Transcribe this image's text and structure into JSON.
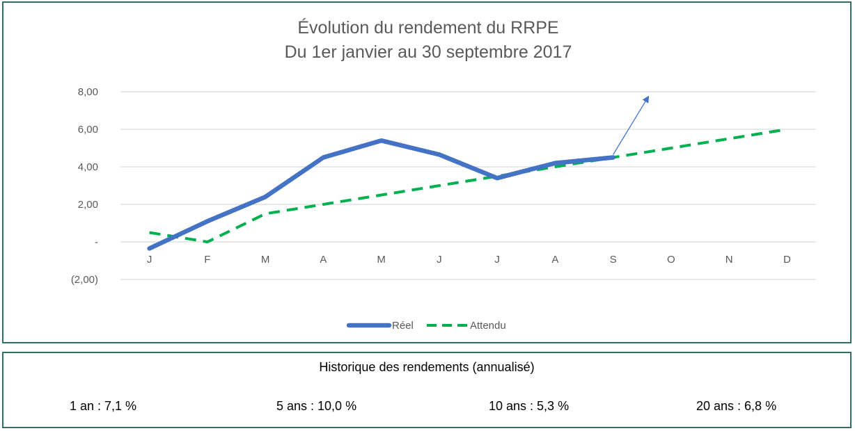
{
  "chart_data": {
    "type": "line",
    "title": [
      "Évolution du rendement du RRPE",
      "Du 1er janvier au 30 septembre 2017"
    ],
    "categories": [
      "J",
      "F",
      "M",
      "A",
      "M",
      "J",
      "J",
      "A",
      "S",
      "O",
      "N",
      "D"
    ],
    "y_ticks": [
      -2,
      0,
      2,
      4,
      6,
      8
    ],
    "y_tick_labels": [
      "(2,00)",
      "-",
      "2,00",
      "4,00",
      "6,00",
      "8,00"
    ],
    "ylim": [
      -2,
      8
    ],
    "grid": true,
    "legend_position": "bottom",
    "series": [
      {
        "name": "Réel",
        "style": "solid",
        "color": "#4472c4",
        "values": [
          -0.35,
          1.1,
          2.4,
          4.5,
          5.4,
          4.65,
          3.4,
          4.2,
          4.5,
          null,
          null,
          null
        ]
      },
      {
        "name": "Attendu",
        "style": "dashed",
        "color": "#00b050",
        "values": [
          0.5,
          0.0,
          1.5,
          2.0,
          2.5,
          3.0,
          3.5,
          4.0,
          4.5,
          5.0,
          5.5,
          6.0
        ]
      }
    ],
    "annotation": {
      "type": "arrow",
      "color": "#4472c4",
      "from": {
        "x_index": 8.0,
        "y": 4.65
      },
      "to": {
        "x_index": 8.6,
        "y": 7.7
      }
    }
  },
  "history": {
    "title": "Historique des rendements (annualisé)",
    "items": [
      "1 an : 7,1 %",
      "5 ans : 10,0 %",
      "10 ans : 5,3 %",
      "20 ans : 6,8 %"
    ]
  }
}
